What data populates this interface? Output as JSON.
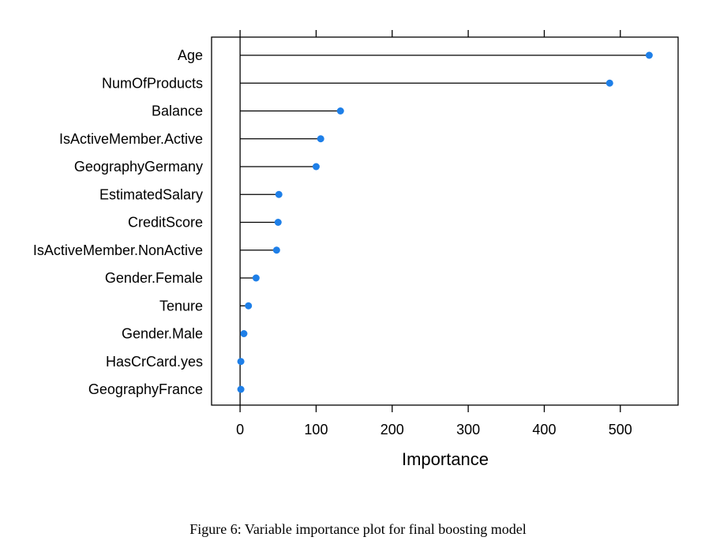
{
  "caption": "Figure 6: Variable importance plot for final boosting model",
  "chart_data": {
    "type": "dot",
    "variables": [
      "Age",
      "NumOfProducts",
      "Balance",
      "IsActiveMember.Active",
      "GeographyGermany",
      "EstimatedSalary",
      "CreditScore",
      "IsActiveMember.NonActive",
      "Gender.Female",
      "Tenure",
      "Gender.Male",
      "HasCrCard.yes",
      "GeographyFrance"
    ],
    "values": [
      538,
      486,
      132,
      106,
      100,
      51,
      50,
      48,
      21,
      11,
      5,
      1,
      1
    ],
    "xlabel": "Importance",
    "ylabel": "",
    "xlim": [
      -37.5,
      576
    ],
    "xticks": [
      0,
      100,
      200,
      300,
      400,
      500
    ],
    "point_color": "#1E7FE8",
    "line_color": "#000000",
    "grid": false
  }
}
